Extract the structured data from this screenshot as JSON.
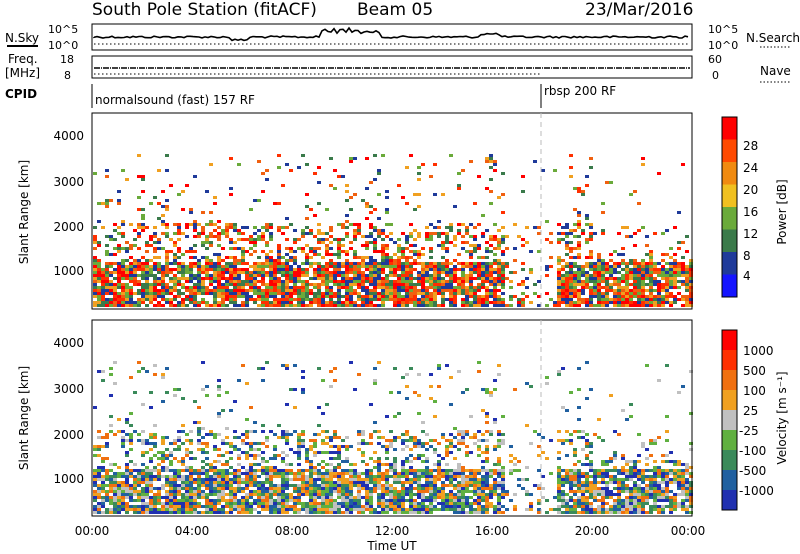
{
  "header": {
    "station": "South Pole Station (fitACF)",
    "beam": "Beam 05",
    "date": "23/Mar/2016"
  },
  "top_panels": {
    "nsky_label": "N.Sky",
    "nsearch_label": "N.Search",
    "nsky_ticks": [
      "10^5",
      "10^0"
    ],
    "nsearch_ticks": [
      "10^5",
      "10^0"
    ],
    "freq_label": "Freq.",
    "freq_unit": "[MHz]",
    "freq_ticks": [
      "18",
      "8"
    ],
    "nave_label": "Nave",
    "nave_ticks": [
      "60",
      "0"
    ],
    "cpid_label": "CPID",
    "cpid_segments": [
      {
        "label": "normalsound (fast) 157 RF",
        "start_h": 0
      },
      {
        "label": "rbsp 200 RF",
        "start_h": 18
      }
    ]
  },
  "chart_data": [
    {
      "type": "heatmap",
      "name": "power",
      "ylabel": "Slant Range [km]",
      "yticks": [
        "4000",
        "3000",
        "2000",
        "1000"
      ],
      "ylim": [
        200,
        4600
      ],
      "xlim": [
        0,
        24
      ],
      "colorbar_label": "Power [dB]",
      "colorbar_ticks": [
        "28",
        "24",
        "20",
        "16",
        "12",
        "8",
        "4"
      ],
      "colors": [
        "#1515ff",
        "#1f3a9a",
        "#3a7a4a",
        "#6aaa3a",
        "#f0c020",
        "#f08a10",
        "#ff4a00",
        "#ff0000"
      ]
    },
    {
      "type": "heatmap",
      "name": "velocity",
      "ylabel": "Slant Range [km]",
      "yticks": [
        "4000",
        "3000",
        "2000",
        "1000"
      ],
      "ylim": [
        200,
        4600
      ],
      "xlim": [
        0,
        24
      ],
      "colorbar_label": "Velocity [m s⁻¹]",
      "colorbar_ticks": [
        "1000",
        "500",
        "100",
        "25",
        "-25",
        "-100",
        "-500",
        "-1000"
      ],
      "colors": [
        "#2030b0",
        "#2060a0",
        "#3a8a5a",
        "#60b040",
        "#c0c0c0",
        "#f0a020",
        "#f07010",
        "#ff3000",
        "#ff0000"
      ]
    }
  ],
  "xaxis": {
    "ticks": [
      "00:00",
      "04:00",
      "08:00",
      "12:00",
      "16:00",
      "20:00",
      "00:00"
    ],
    "label": "Time UT"
  }
}
